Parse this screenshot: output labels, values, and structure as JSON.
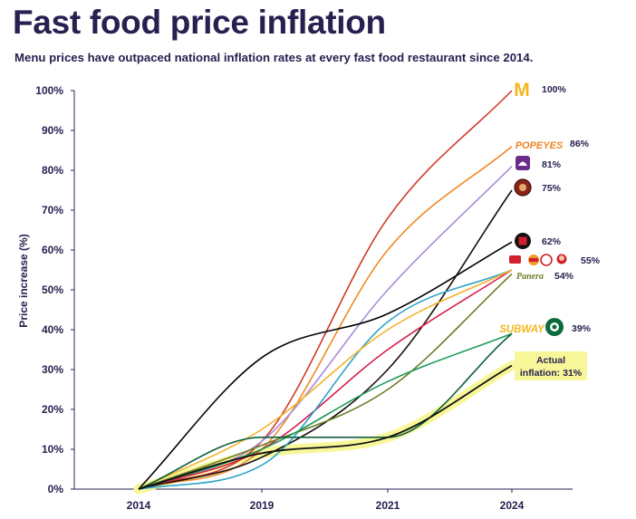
{
  "header": {
    "title": "Fast food price inflation",
    "subtitle": "Menu prices have outpaced national inflation rates at every fast food restaurant since 2014."
  },
  "chart_data": {
    "type": "line",
    "title": "Fast food price inflation",
    "subtitle": "Menu prices have outpaced national inflation rates at every fast food restaurant since 2014.",
    "xlabel": "",
    "ylabel": "Price increase (%)",
    "x": [
      2014,
      2019,
      2021,
      2024
    ],
    "ylim": [
      0,
      100
    ],
    "yticks": [
      "0%",
      "10%",
      "20%",
      "30%",
      "40%",
      "50%",
      "60%",
      "70%",
      "80%",
      "90%",
      "100%"
    ],
    "xticks": [
      "2014",
      "2019",
      "2021",
      "2024"
    ],
    "grid": false,
    "series": [
      {
        "name": "McDonald's",
        "color": "#d13a2a",
        "values": [
          0,
          12,
          68,
          100
        ],
        "label": "100%",
        "logo": "mcdonalds-logo"
      },
      {
        "name": "Popeyes",
        "color": "#ef8a24",
        "values": [
          0,
          10,
          60,
          86
        ],
        "label": "86%",
        "logo": "popeyes-logo"
      },
      {
        "name": "Taco Bell",
        "color": "#a98bd6",
        "values": [
          0,
          12,
          50,
          81
        ],
        "label": "81%",
        "logo": "taco-bell-logo"
      },
      {
        "name": "Chipotle",
        "color": "#1a0f0a",
        "values": [
          0,
          8,
          30,
          75
        ],
        "label": "75%",
        "logo": "chipotle-logo"
      },
      {
        "name": "Jack in the Box",
        "color": "#000000",
        "values": [
          0,
          33,
          44,
          62
        ],
        "label": "62%",
        "logo": "jack-in-the-box-logo"
      },
      {
        "name": "Arby's / Burger King / Chick-fil-A / Wendy's",
        "color": "#d81e4a",
        "values": [
          0,
          10,
          35,
          55
        ],
        "label": "55%",
        "logo": "arbys-burger-king-chick-fil-a-wendys-logos"
      },
      {
        "name": "Arby's / Burger King / Chick-fil-A / Wendy's",
        "color": "#2ea3c8",
        "values": [
          0,
          6,
          42,
          55
        ],
        "label": "55%",
        "logo": "arbys-burger-king-chick-fil-a-wendys-logos"
      },
      {
        "name": "Arby's / Burger King / Chick-fil-A / Wendy's",
        "color": "#f3b32a",
        "values": [
          0,
          15,
          40,
          55
        ],
        "label": "55%",
        "logo": "arbys-burger-king-chick-fil-a-wendys-logos"
      },
      {
        "name": "Panera",
        "color": "#6b7d25",
        "values": [
          0,
          11,
          25,
          54
        ],
        "label": "54%",
        "logo": "panera-logo"
      },
      {
        "name": "Subway",
        "color": "#1c9a5a",
        "values": [
          0,
          10,
          27,
          39
        ],
        "label": "39%",
        "logo": "subway-logo"
      },
      {
        "name": "Starbucks",
        "color": "#0d5f3a",
        "values": [
          0,
          13,
          13,
          39
        ],
        "label": "39%",
        "logo": "starbucks-logo"
      },
      {
        "name": "Actual inflation",
        "color": "#111111",
        "values": [
          0,
          9,
          13,
          31
        ],
        "label": "Actual inflation: 31%",
        "highlight": "#f7f79a"
      }
    ]
  },
  "annotations": {
    "mcd": "100%",
    "popeyes": "86%",
    "tacobell": "81%",
    "chipotle": "75%",
    "jackinthebox": "62%",
    "group": "55%",
    "panera": "54%",
    "subway_starbucks": "39%",
    "actual_line1": "Actual",
    "actual_line2": "inflation: 31%",
    "popeyes_logo_text": "POPEYES",
    "subway_logo_text": "SUBWAY",
    "panera_logo_text": "Panera"
  },
  "colors": {
    "text": "#262150",
    "highlight": "#f7f79a",
    "axis": "#262150"
  }
}
